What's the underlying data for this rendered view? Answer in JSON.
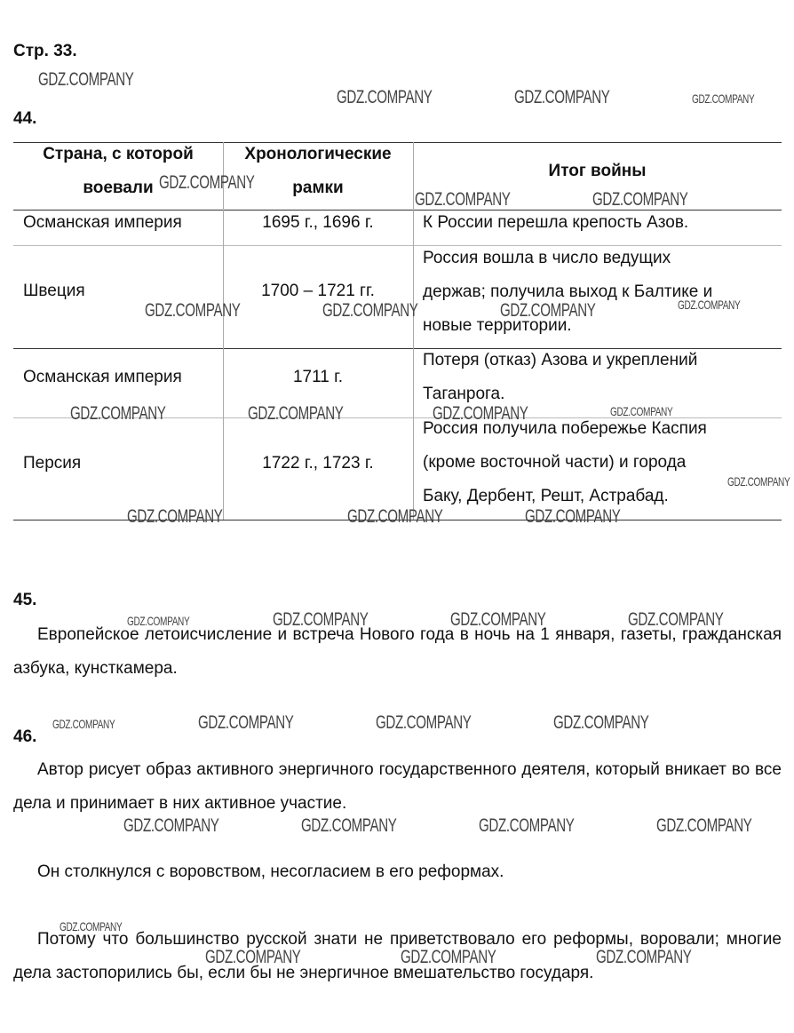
{
  "page_ref": "Стр. 33.",
  "watermark": "GDZ.COMPANY",
  "task44": {
    "number": "44.",
    "headers": [
      "Страна, с которой воевали",
      "Хронологические рамки",
      "Итог войны"
    ],
    "header_lines": {
      "col1": [
        "Страна, с которой",
        "воевали"
      ],
      "col2": [
        "Хронологические",
        "рамки"
      ],
      "col3": "Итог войны"
    },
    "rows": [
      {
        "country": "Османская империя",
        "dates": "1695 г., 1696 г.",
        "result": [
          "К России перешла крепость Азов."
        ]
      },
      {
        "country": "Швеция",
        "dates": "1700 – 1721 гг.",
        "result": [
          "Россия вошла в число ведущих",
          "держав; получила выход к Балтике и",
          "новые территории."
        ]
      },
      {
        "country": "Османская империя",
        "dates": "1711 г.",
        "result": [
          "Потеря (отказ) Азова и укреплений",
          "Таганрога."
        ]
      },
      {
        "country": "Персия",
        "dates": "1722 г., 1723 г.",
        "result": [
          "Россия получила побережье Каспия",
          "(кроме восточной части) и города",
          "Баку, Дербент, Решт, Астрабад."
        ]
      }
    ]
  },
  "task45": {
    "number": "45.",
    "text": "Европейское летоисчисление и встреча Нового года в ночь на 1 января, газеты, гражданская азбука, кунсткамера."
  },
  "task46": {
    "number": "46.",
    "paragraphs": [
      "Автор рисует образ активного энергичного государственного деятеля, который вникает во все дела и принимает в них активное участие.",
      "Он столкнулся с воровством, несогласием в его реформах.",
      "Потому что большинство русской знати не приветствовало его реформы, воровали; многие дела застопорились бы, если бы не энергичное вмешательство государя."
    ]
  }
}
